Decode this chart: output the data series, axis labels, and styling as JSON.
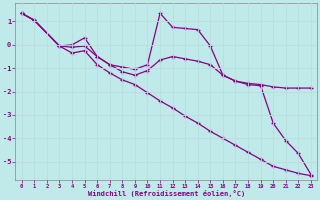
{
  "xlabel": "Windchill (Refroidissement éolien,°C)",
  "bg_color": "#c0eaea",
  "line_color": "#880088",
  "grid_color": "#aadddd",
  "xlim": [
    -0.5,
    23.5
  ],
  "ylim": [
    -5.8,
    1.8
  ],
  "xticks": [
    0,
    1,
    2,
    3,
    4,
    5,
    6,
    7,
    8,
    9,
    10,
    11,
    12,
    13,
    14,
    15,
    16,
    17,
    18,
    19,
    20,
    21,
    22,
    23
  ],
  "yticks": [
    -5,
    -4,
    -3,
    -2,
    -1,
    0,
    1
  ],
  "line1_x": [
    0,
    1,
    3,
    4,
    5,
    6,
    7,
    8,
    9,
    10,
    11,
    12,
    13,
    14,
    15,
    16,
    17,
    18,
    19,
    20,
    21,
    22,
    23
  ],
  "line1_y": [
    1.35,
    1.05,
    -0.05,
    0.0,
    0.3,
    -0.5,
    -0.85,
    -0.95,
    -1.05,
    -0.85,
    1.35,
    0.75,
    0.7,
    0.65,
    -0.05,
    -1.3,
    -1.55,
    -1.65,
    -1.7,
    -1.8,
    -1.85,
    -1.85,
    -1.85
  ],
  "line2_x": [
    0,
    1,
    3,
    4,
    5,
    6,
    7,
    8,
    9,
    10,
    11,
    12,
    13,
    14,
    15,
    16,
    17,
    18,
    19,
    20,
    21,
    22,
    23
  ],
  "line2_y": [
    1.35,
    1.05,
    -0.05,
    -0.1,
    -0.05,
    -0.5,
    -0.85,
    -1.15,
    -1.3,
    -1.1,
    -0.65,
    -0.5,
    -0.6,
    -0.7,
    -0.85,
    -1.3,
    -1.55,
    -1.7,
    -1.75,
    -3.35,
    -4.1,
    -4.65,
    -5.55
  ],
  "line3_x": [
    0,
    1,
    3,
    4,
    5,
    6,
    7,
    8,
    9,
    10,
    11,
    12,
    13,
    14,
    15,
    16,
    17,
    18,
    19,
    20,
    21,
    22,
    23
  ],
  "line3_y": [
    1.35,
    1.05,
    -0.05,
    -0.35,
    -0.25,
    -0.85,
    -1.2,
    -1.5,
    -1.7,
    -2.05,
    -2.4,
    -2.7,
    -3.05,
    -3.35,
    -3.7,
    -4.0,
    -4.3,
    -4.6,
    -4.9,
    -5.2,
    -5.35,
    -5.5,
    -5.6
  ]
}
